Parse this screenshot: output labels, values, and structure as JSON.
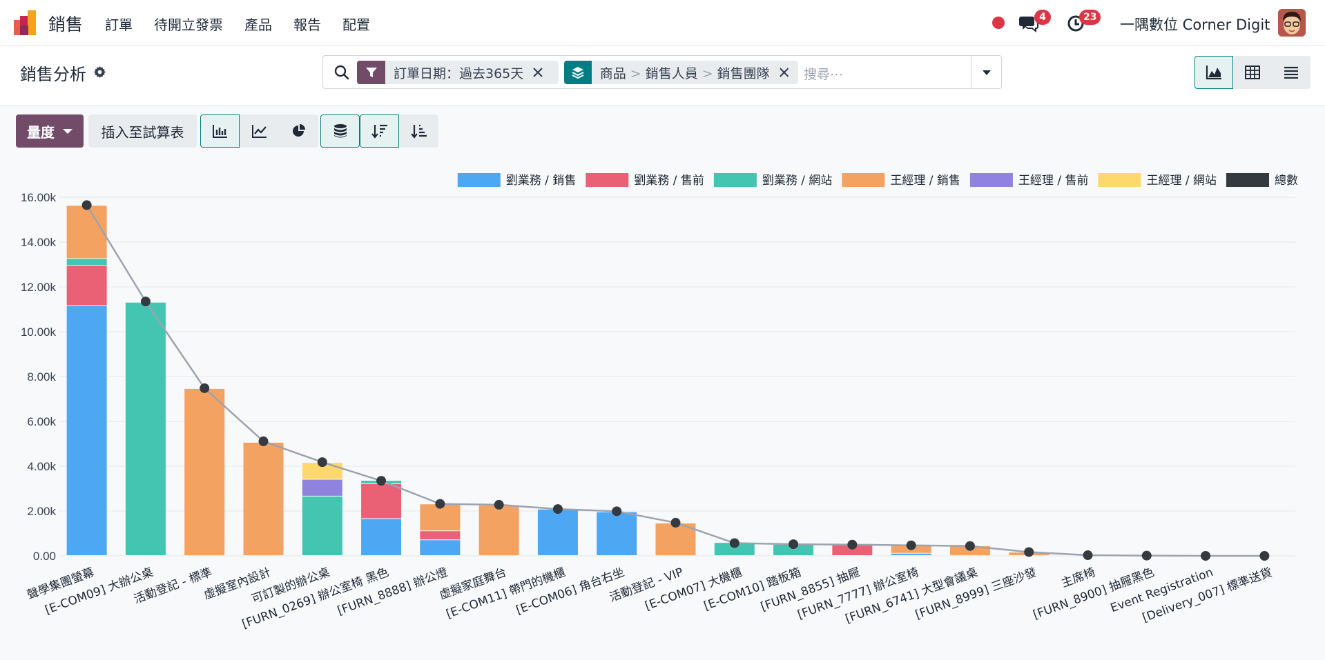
{
  "nav": {
    "app_name": "銷售",
    "menu": [
      "訂單",
      "待開立發票",
      "產品",
      "報告",
      "配置"
    ],
    "messages_count": "4",
    "activities_count": "23",
    "company": "一隅數位 Corner Digit"
  },
  "control": {
    "title": "銷售分析",
    "facet_filter": "訂單日期：過去365天",
    "facet_groupby": [
      "商品",
      "銷售人員",
      "銷售團隊"
    ],
    "facet_groupby_sep": ">",
    "search_placeholder": "搜尋⋯"
  },
  "toolbar": {
    "measures_label": "量度",
    "insert_label": "插入至試算表"
  },
  "colors": {
    "primary": "#714b67",
    "teal": "#017e84",
    "badge": "#dc3545"
  },
  "chart_data": {
    "type": "bar",
    "stacked": true,
    "ylim": [
      0,
      16000
    ],
    "ytick_labels": [
      "0.00",
      "2.00k",
      "4.00k",
      "6.00k",
      "8.00k",
      "10.00k",
      "12.00k",
      "14.00k",
      "16.00k"
    ],
    "grid": true,
    "legend_position": "top-right",
    "categories": [
      "聲學集團螢幕",
      "[E-COM09] 大辦公桌",
      "活動登記 - 標準",
      "虛擬室內設計",
      "可訂製的辦公桌",
      "[FURN_0269] 辦公室椅 黑色",
      "[FURN_8888] 辦公燈",
      "虛擬家庭舞台",
      "[E-COM11] 帶門的機櫃",
      "[E-COM06] 角台右坐",
      "活動登記 - VIP",
      "[E-COM07] 大機櫃",
      "[E-COM10] 踏板箱",
      "[FURN_8855] 抽屜",
      "[FURN_7777] 辦公室椅",
      "[FURN_6741] 大型會議桌",
      "[FURN_8999] 三座沙發",
      "主席椅",
      "[FURN_8900] 抽屜黑色",
      "Event Registration",
      "[Delivery_007] 標準送貨"
    ],
    "series": [
      {
        "name": "劉業務 / 銷售",
        "color": "#4ea7f2",
        "values": [
          11150,
          0,
          0,
          0,
          0,
          1650,
          700,
          0,
          2070,
          1950,
          0,
          0,
          0,
          0,
          100,
          0,
          0,
          0,
          0,
          0,
          0
        ]
      },
      {
        "name": "劉業務 / 售前",
        "color": "#ea6175",
        "values": [
          1800,
          0,
          0,
          0,
          0,
          1550,
          400,
          0,
          0,
          0,
          0,
          0,
          0,
          500,
          0,
          0,
          0,
          0,
          0,
          0,
          0
        ]
      },
      {
        "name": "劉業務 / 網站",
        "color": "#43c5b1",
        "values": [
          300,
          11300,
          0,
          0,
          2650,
          150,
          0,
          0,
          0,
          0,
          0,
          580,
          500,
          0,
          0,
          0,
          0,
          0,
          0,
          0,
          0
        ]
      },
      {
        "name": "王經理 / 銷售",
        "color": "#f4a261",
        "values": [
          2370,
          0,
          7450,
          5050,
          0,
          0,
          1200,
          2250,
          0,
          0,
          1450,
          0,
          0,
          0,
          350,
          430,
          150,
          0,
          0,
          0,
          0
        ]
      },
      {
        "name": "王經理 / 售前",
        "color": "#8f83df",
        "values": [
          0,
          0,
          0,
          0,
          750,
          0,
          0,
          0,
          0,
          0,
          0,
          0,
          0,
          0,
          0,
          0,
          0,
          0,
          0,
          0,
          0
        ]
      },
      {
        "name": "王經理 / 網站",
        "color": "#ffd86d",
        "values": [
          0,
          0,
          0,
          0,
          750,
          0,
          0,
          0,
          0,
          0,
          0,
          0,
          0,
          0,
          0,
          0,
          0,
          0,
          0,
          0,
          0
        ]
      },
      {
        "name": "總數",
        "color": "#343a40",
        "type": "line",
        "values": [
          15650,
          11350,
          7480,
          5110,
          4180,
          3350,
          2320,
          2280,
          2090,
          1990,
          1480,
          570,
          520,
          500,
          470,
          440,
          170,
          30,
          10,
          0,
          0
        ]
      }
    ]
  }
}
